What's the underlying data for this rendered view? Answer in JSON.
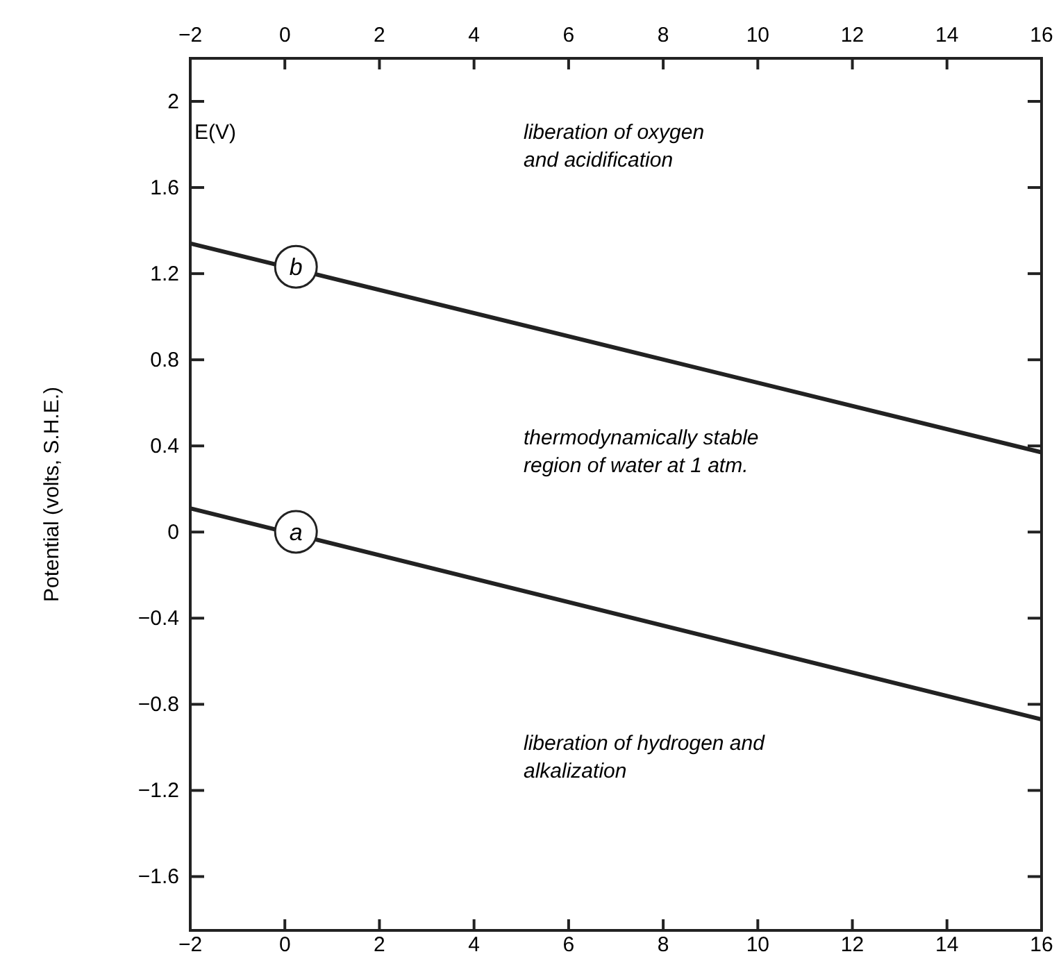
{
  "chart_data": {
    "type": "line",
    "ylabel": "Potential (volts, S.H.E.)",
    "x": [
      -2,
      16
    ],
    "series": [
      {
        "name": "b",
        "color": "#222222",
        "values": [
          1.34,
          0.37
        ]
      },
      {
        "name": "a",
        "color": "#222222",
        "values": [
          0.11,
          -0.87
        ]
      }
    ],
    "xlim": [
      -2,
      16
    ],
    "xticks": [
      -2,
      0,
      2,
      4,
      6,
      8,
      10,
      12,
      14,
      16
    ],
    "x2lim": [
      -2,
      16
    ],
    "x2ticks": [
      -2,
      0,
      2,
      4,
      6,
      8,
      10,
      12,
      14,
      16
    ],
    "ylim": [
      -1.85,
      2.2
    ],
    "yticks": [
      {
        "value": -1.6,
        "label": "−1.6"
      },
      {
        "value": -1.2,
        "label": "−1.2"
      },
      {
        "value": -0.8,
        "label": "−0.8"
      },
      {
        "value": -0.4,
        "label": "−0.4"
      },
      0,
      0.4,
      0.8,
      1.2,
      1.6,
      2
    ],
    "grid": false,
    "marker": "none",
    "line_style": "solid",
    "annotations": [
      "E(V)",
      "liberation of oxygen\nand acidification",
      "thermodynamically stable\nregion of water at 1 atm.",
      "liberation of hydrogen and\nalkalization"
    ]
  }
}
